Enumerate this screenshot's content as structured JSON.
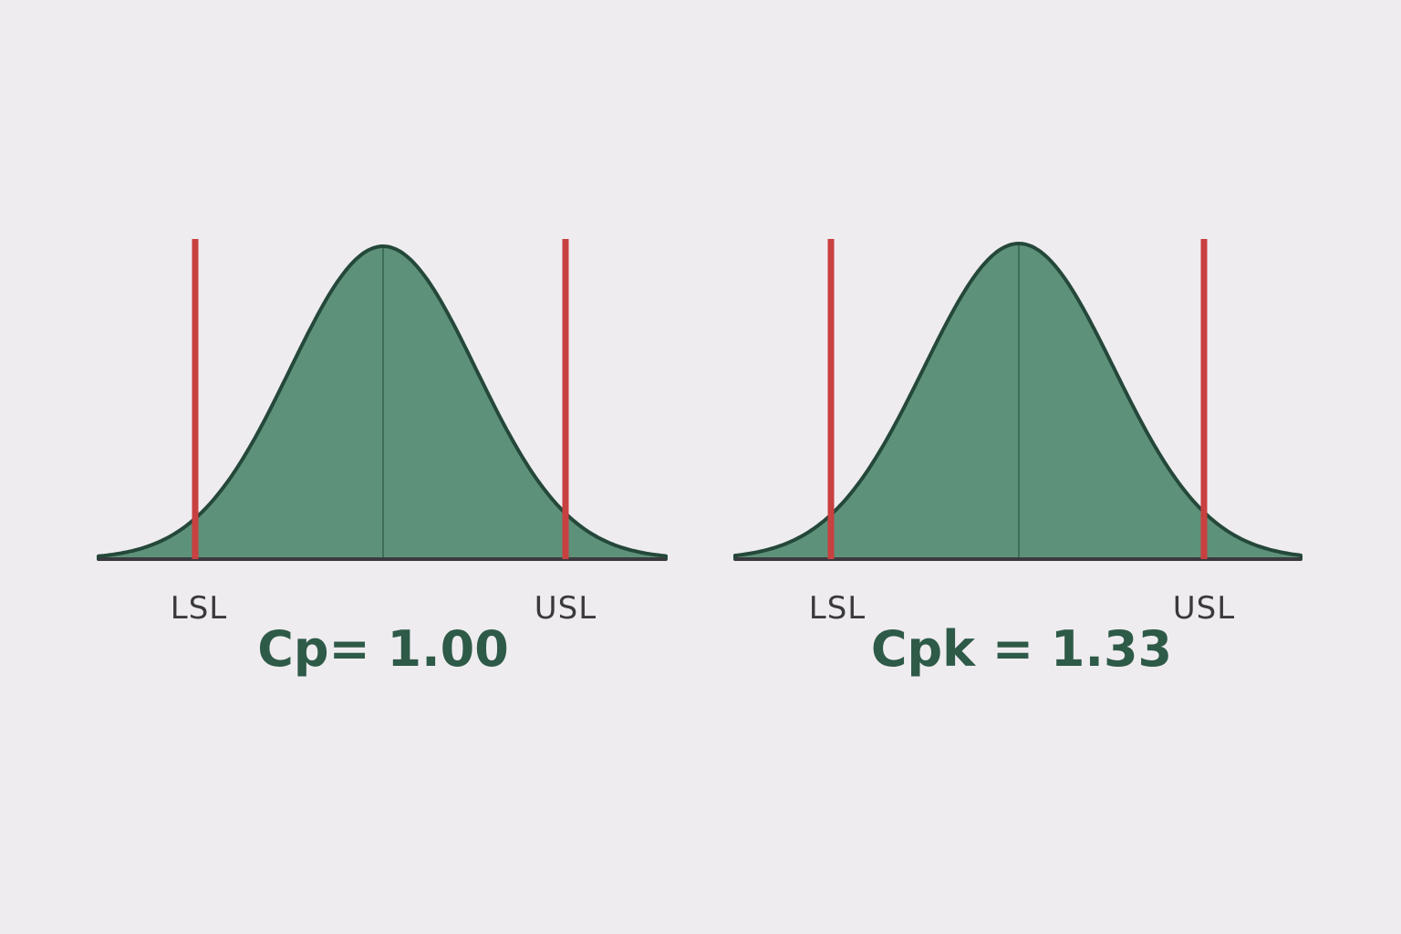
{
  "colors": {
    "background": "#efecf0",
    "curve_fill": "#5e917a",
    "curve_stroke": "#24483a",
    "spec_limit": "#c84040",
    "baseline": "#3a3a3e",
    "stat_text": "#2e5a48"
  },
  "panels": [
    {
      "lsl_label": "LSL",
      "usl_label": "USL",
      "stat_label": "Cp= 1.00"
    },
    {
      "lsl_label": "LSL",
      "usl_label": "USL",
      "stat_label": "Cpk = 1.33"
    }
  ]
}
